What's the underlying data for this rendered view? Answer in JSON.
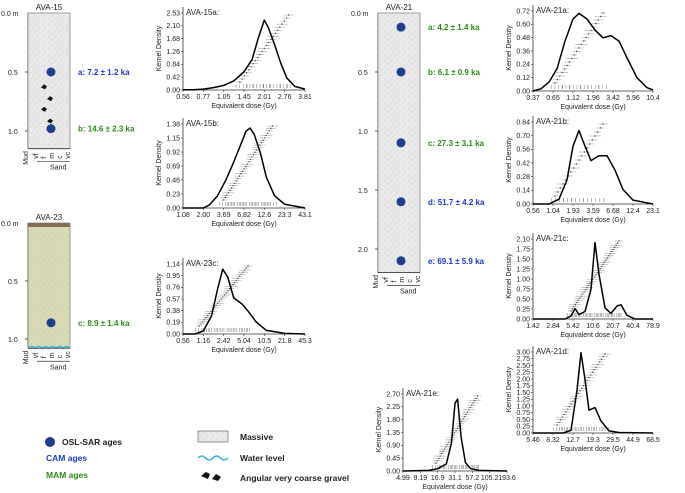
{
  "colors": {
    "osl_dot": "#1d3f8f",
    "cam": "#1e36c9",
    "mam": "#2e8b1a",
    "massive_fill": "#e9e9ea",
    "ava23_fill": "#d9d9b6",
    "ava23_top": "#8a6a4e",
    "water": "#38b8d6"
  },
  "columns": [
    {
      "id": "AVA-15",
      "depth_label": "0.0 m",
      "depth_ticks": [
        {
          "label": "0.5",
          "d": 0.5
        },
        {
          "label": "1.0",
          "d": 1.0
        }
      ],
      "total_depth": 1.15,
      "fill": "massive",
      "samples": [
        {
          "d": 0.5,
          "text": "a: 7.2 ± 1.2 ka",
          "model": "CAM"
        },
        {
          "d": 0.98,
          "text": "b: 14.6 ± 2.3 ka",
          "model": "MAM"
        }
      ],
      "gravel_depths": [
        0.63,
        0.73,
        0.82,
        0.92
      ],
      "water_level": false,
      "grain_axis": {
        "labels": [
          "Mud",
          "vf",
          "f",
          "m",
          "c",
          "vc"
        ],
        "group": "Sand"
      }
    },
    {
      "id": "AVA-23",
      "depth_label": "0.0 m",
      "depth_ticks": [
        {
          "label": "0.5",
          "d": 0.5
        },
        {
          "label": "1.0",
          "d": 1.0
        }
      ],
      "total_depth": 1.08,
      "fill": "sand",
      "samples": [
        {
          "d": 0.86,
          "text": "c: 8.9 ± 1.4 ka",
          "model": "MAM"
        }
      ],
      "gravel_depths": [],
      "water_level": true,
      "grain_axis": {
        "labels": [
          "Mud",
          "vf",
          "f",
          "m",
          "c",
          "vc"
        ],
        "group": "Sand"
      }
    },
    {
      "id": "AVA-21",
      "depth_label": "0.0 m",
      "depth_ticks": [
        {
          "label": "0.5",
          "d": 0.5
        },
        {
          "label": "1.0",
          "d": 1.0
        },
        {
          "label": "1.5",
          "d": 1.5
        },
        {
          "label": "2.0",
          "d": 2.0
        }
      ],
      "total_depth": 2.2,
      "fill": "massive",
      "samples": [
        {
          "d": 0.12,
          "text": "a: 4.2 ± 1.4 ka",
          "model": "MAM"
        },
        {
          "d": 0.5,
          "text": "b: 6.1 ± 0.9 ka",
          "model": "MAM"
        },
        {
          "d": 1.1,
          "text": "c: 27.3 ± 3.1 ka",
          "model": "MAM"
        },
        {
          "d": 1.6,
          "text": "d: 51.7 ± 4.2 ka",
          "model": "CAM"
        },
        {
          "d": 2.1,
          "text": "e: 69.1 ± 5.9 ka",
          "model": "CAM"
        }
      ],
      "gravel_depths": [],
      "water_level": false,
      "grain_axis": {
        "labels": [
          "Mud",
          "vf",
          "f",
          "m",
          "c",
          "vc"
        ],
        "group": "Sand"
      }
    }
  ],
  "chart_data": [
    {
      "id": "AVA-15a",
      "type": "line",
      "title": "AVA-15a:",
      "xlabel": "Equivalent dose (Gy)",
      "ylabel": "Kernel Density",
      "x_ticks": [
        "0.56",
        "0.77",
        "1.05",
        "1.45",
        "2.01",
        "2.76",
        "3.81"
      ],
      "y_ticks": [
        "0.00",
        "0.42",
        "0.84",
        "1.26",
        "1.68",
        "2.10",
        "2.53"
      ],
      "ylim": [
        0,
        2.6
      ],
      "peak_x": 4.0,
      "n_aliquots": 23,
      "kde": [
        [
          0,
          0.01
        ],
        [
          0.5,
          0.01
        ],
        [
          1,
          0.03
        ],
        [
          1.5,
          0.08
        ],
        [
          2,
          0.15
        ],
        [
          2.5,
          0.3
        ],
        [
          3,
          0.6
        ],
        [
          3.4,
          1.0
        ],
        [
          3.7,
          1.7
        ],
        [
          4.0,
          2.3
        ],
        [
          4.2,
          2.05
        ],
        [
          4.5,
          1.5
        ],
        [
          4.8,
          0.9
        ],
        [
          5.1,
          0.4
        ],
        [
          5.5,
          0.12
        ],
        [
          6,
          0.03
        ]
      ]
    },
    {
      "id": "AVA-15b",
      "type": "line",
      "title": "AVA-15b:",
      "xlabel": "Equivalent dose (Gy)",
      "ylabel": "Kernel Density",
      "x_ticks": [
        "1.08",
        "2.00",
        "3.69",
        "6.82",
        "12.6",
        "23.3",
        "43.1"
      ],
      "y_ticks": [
        "0.00",
        "0.23",
        "0.46",
        "0.69",
        "0.92",
        "1.15",
        "1.38"
      ],
      "ylim": [
        0,
        1.4
      ],
      "peak_x": 3.2,
      "n_aliquots": 32,
      "kde": [
        [
          0,
          0.0
        ],
        [
          1,
          0.0
        ],
        [
          1.3,
          0.05
        ],
        [
          1.7,
          0.2
        ],
        [
          2.1,
          0.45
        ],
        [
          2.5,
          0.75
        ],
        [
          2.8,
          1.0
        ],
        [
          3.1,
          1.25
        ],
        [
          3.3,
          1.3
        ],
        [
          3.5,
          1.2
        ],
        [
          3.8,
          0.9
        ],
        [
          4.1,
          0.5
        ],
        [
          4.5,
          0.2
        ],
        [
          5,
          0.06
        ],
        [
          6,
          0.0
        ]
      ]
    },
    {
      "id": "AVA-23c",
      "type": "line",
      "title": "AVA-23c:",
      "xlabel": "Equivalent dose (Gy)",
      "ylabel": "Kernel Density",
      "x_ticks": [
        "0.56",
        "1.16",
        "2.42",
        "5.04",
        "10.5",
        "21.8",
        "45.3"
      ],
      "y_ticks": [
        "0.00",
        "0.19",
        "0.38",
        "0.57",
        "0.76",
        "0.95",
        "1.14"
      ],
      "ylim": [
        0,
        1.2
      ],
      "peak_x": 2.0,
      "n_aliquots": 30,
      "kde": [
        [
          0,
          0.0
        ],
        [
          0.6,
          0.0
        ],
        [
          1.0,
          0.05
        ],
        [
          1.4,
          0.3
        ],
        [
          1.7,
          0.75
        ],
        [
          1.95,
          1.08
        ],
        [
          2.2,
          0.95
        ],
        [
          2.5,
          0.6
        ],
        [
          2.9,
          0.5
        ],
        [
          3.2,
          0.38
        ],
        [
          3.6,
          0.2
        ],
        [
          4.1,
          0.06
        ],
        [
          5,
          0.01
        ],
        [
          6,
          0.0
        ]
      ]
    },
    {
      "id": "AVA-21a",
      "type": "line",
      "title": "AVA-21a:",
      "xlabel": "Equivalent dose (Gy)",
      "ylabel": "Kernel Density",
      "x_ticks": [
        "0.37",
        "0.65",
        "1.12",
        "1.96",
        "3.42",
        "5.96",
        "10.4"
      ],
      "y_ticks": [
        "0.00",
        "0.12",
        "0.24",
        "0.36",
        "0.48",
        "0.60",
        "0.72"
      ],
      "ylim": [
        0,
        0.74
      ],
      "peak_x": 2.3,
      "n_aliquots": 21,
      "kde": [
        [
          0,
          0.0
        ],
        [
          0.4,
          0.02
        ],
        [
          0.8,
          0.08
        ],
        [
          1.2,
          0.2
        ],
        [
          1.6,
          0.45
        ],
        [
          2.0,
          0.65
        ],
        [
          2.3,
          0.7
        ],
        [
          2.7,
          0.65
        ],
        [
          3.1,
          0.55
        ],
        [
          3.5,
          0.48
        ],
        [
          3.9,
          0.5
        ],
        [
          4.3,
          0.45
        ],
        [
          4.7,
          0.3
        ],
        [
          5.2,
          0.12
        ],
        [
          5.7,
          0.03
        ],
        [
          6,
          0.01
        ]
      ]
    },
    {
      "id": "AVA-21b",
      "type": "line",
      "title": "AVA-21b:",
      "xlabel": "Equivalent dose (Gy)",
      "ylabel": "Kernel Density",
      "x_ticks": [
        "0.56",
        "1.04",
        "1.93",
        "3.59",
        "6.68",
        "12.4",
        "23.1"
      ],
      "y_ticks": [
        "0.00",
        "0.14",
        "0.28",
        "0.42",
        "0.56",
        "0.70",
        "0.84"
      ],
      "ylim": [
        0,
        0.87
      ],
      "peak_x": 2.3,
      "n_aliquots": 19,
      "kde": [
        [
          0,
          0.0
        ],
        [
          0.8,
          0.0
        ],
        [
          1.3,
          0.05
        ],
        [
          1.7,
          0.25
        ],
        [
          2.0,
          0.6
        ],
        [
          2.3,
          0.76
        ],
        [
          2.6,
          0.6
        ],
        [
          2.9,
          0.45
        ],
        [
          3.3,
          0.5
        ],
        [
          3.7,
          0.5
        ],
        [
          4.1,
          0.35
        ],
        [
          4.5,
          0.15
        ],
        [
          5.0,
          0.04
        ],
        [
          6,
          0.0
        ]
      ]
    },
    {
      "id": "AVA-21c",
      "type": "line",
      "title": "AVA-21c:",
      "xlabel": "Equivalent dose (Gy)",
      "ylabel": "Kernel Density",
      "x_ticks": [
        "1.42",
        "2.84",
        "5.42",
        "10.6",
        "20.7",
        "40.4",
        "78.9"
      ],
      "y_ticks": [
        "0.00",
        "0.25",
        "0.50",
        "0.75",
        "1.00",
        "1.25",
        "1.50",
        "1.75",
        "2.10"
      ],
      "ylim": [
        0,
        2.2
      ],
      "peak_x": 3.1,
      "n_aliquots": 34,
      "kde": [
        [
          0,
          0.0
        ],
        [
          1.6,
          0.0
        ],
        [
          1.9,
          0.08
        ],
        [
          2.1,
          0.28
        ],
        [
          2.3,
          0.12
        ],
        [
          2.6,
          0.2
        ],
        [
          2.9,
          0.8
        ],
        [
          3.1,
          2.05
        ],
        [
          3.3,
          1.2
        ],
        [
          3.6,
          0.3
        ],
        [
          3.9,
          0.15
        ],
        [
          4.2,
          0.35
        ],
        [
          4.4,
          0.38
        ],
        [
          4.7,
          0.1
        ],
        [
          5.1,
          0.0
        ],
        [
          6,
          0.0
        ]
      ]
    },
    {
      "id": "AVA-21d",
      "type": "line",
      "title": "AVA-21d:",
      "xlabel": "Equivalent dose (Gy)",
      "ylabel": "Kernel Density",
      "x_ticks": [
        "5.46",
        "8.32",
        "12.7",
        "19.3",
        "29.5",
        "44.9",
        "68.5"
      ],
      "y_ticks": [
        "0.00",
        "0.25",
        "0.50",
        "0.75",
        "1.00",
        "1.25",
        "1.50",
        "1.75",
        "2.00",
        "2.25",
        "2.50",
        "2.75",
        "3.00"
      ],
      "ylim": [
        0,
        3.1
      ],
      "peak_x": 2.4,
      "n_aliquots": 28,
      "kde": [
        [
          0,
          0.0
        ],
        [
          1.5,
          0.0
        ],
        [
          1.9,
          0.1
        ],
        [
          2.2,
          1.6
        ],
        [
          2.4,
          3.0
        ],
        [
          2.6,
          2.0
        ],
        [
          2.8,
          0.85
        ],
        [
          3.1,
          0.95
        ],
        [
          3.4,
          0.45
        ],
        [
          3.8,
          0.08
        ],
        [
          4.3,
          0.02
        ],
        [
          6,
          0.0
        ]
      ]
    },
    {
      "id": "AVA-21e",
      "type": "line",
      "title": "AVA-21e:",
      "xlabel": "Equivalent dose (Gy)",
      "ylabel": "Kernel Density",
      "x_ticks": [
        "4.99",
        "9.19",
        "16.9",
        "31.1",
        "57.2",
        "105.2",
        "193.6"
      ],
      "y_ticks": [
        "0.00",
        "0.45",
        "0.90",
        "1.35",
        "1.80",
        "2.25",
        "2.70"
      ],
      "ylim": [
        0,
        2.8
      ],
      "peak_x": 3.1,
      "n_aliquots": 30,
      "kde": [
        [
          0,
          0.0
        ],
        [
          1.5,
          0.02
        ],
        [
          2.0,
          0.08
        ],
        [
          2.5,
          0.25
        ],
        [
          2.8,
          1.0
        ],
        [
          3.0,
          2.4
        ],
        [
          3.15,
          2.55
        ],
        [
          3.35,
          1.2
        ],
        [
          3.6,
          0.3
        ],
        [
          3.9,
          0.08
        ],
        [
          4.4,
          0.02
        ],
        [
          6,
          0.0
        ]
      ]
    }
  ],
  "legend": {
    "osl": "OSL-SAR ages",
    "cam": "CAM ages",
    "mam": "MAM ages",
    "massive": "Massive",
    "water": "Water level",
    "gravel": "Angular very coarse gravel"
  }
}
